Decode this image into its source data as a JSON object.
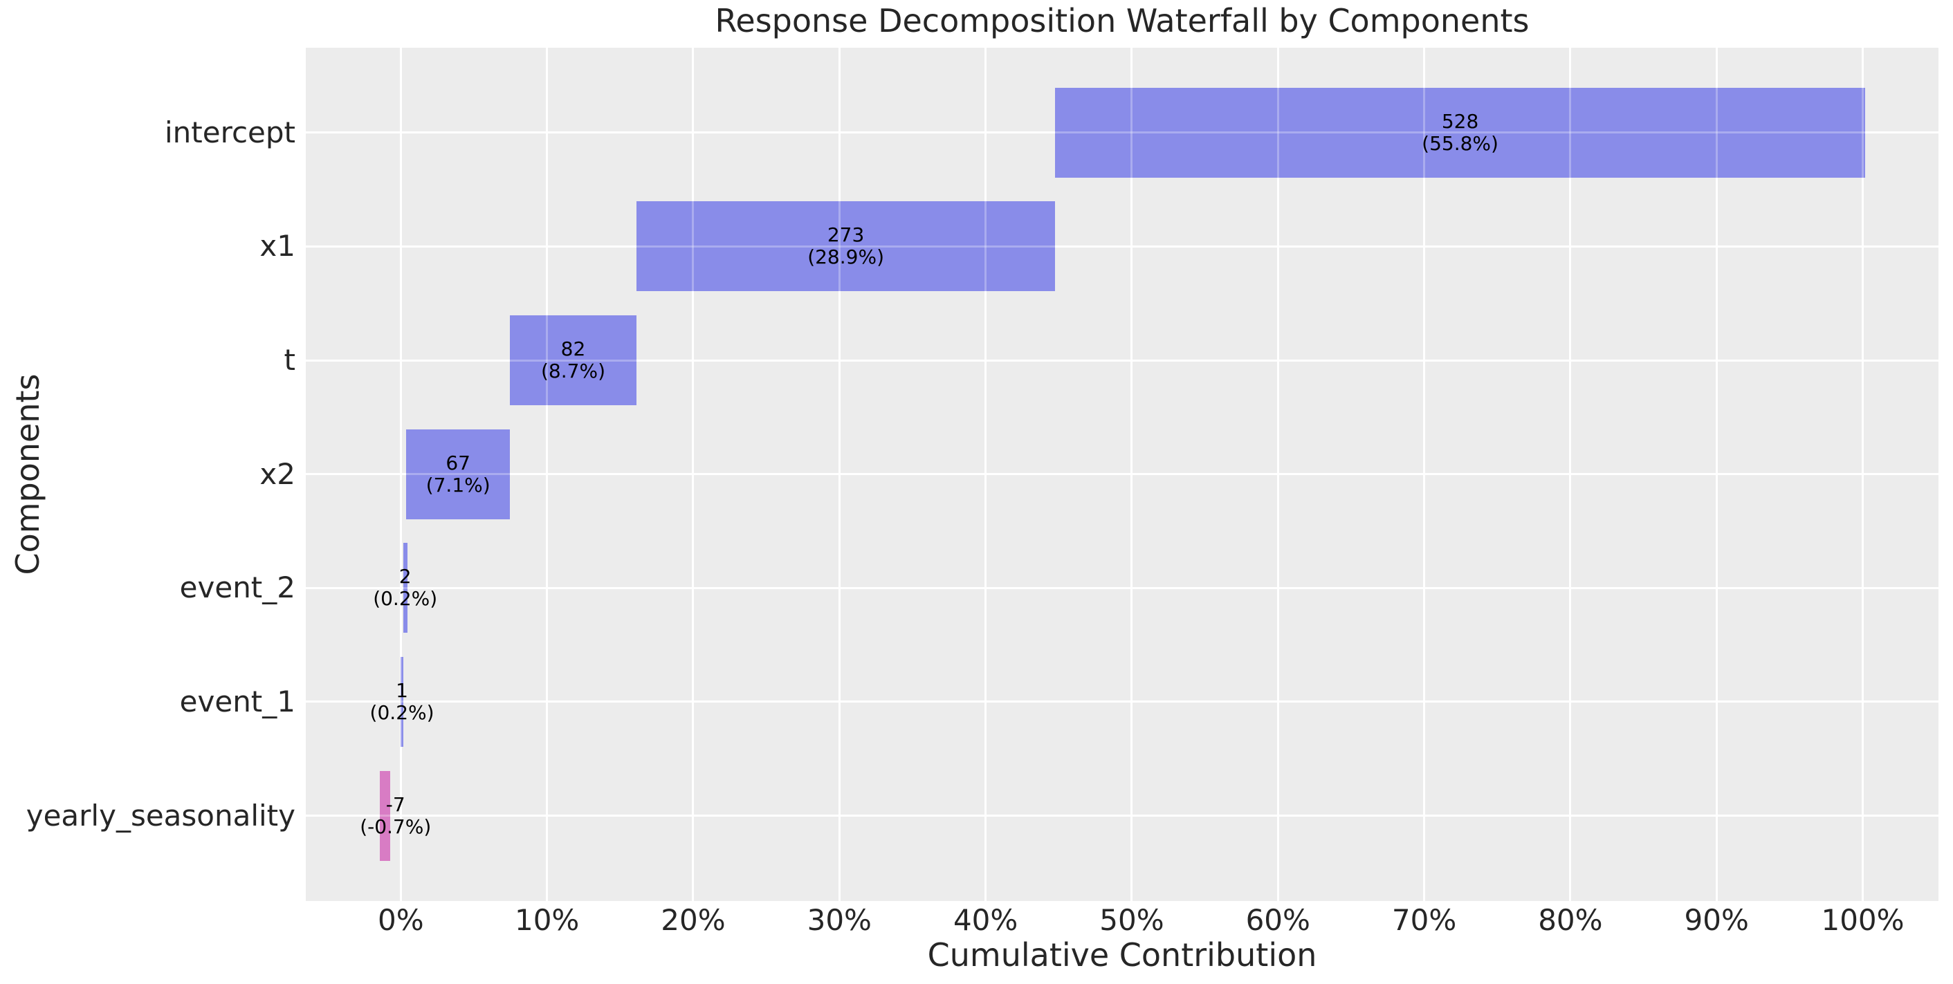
{
  "colors": {
    "positive_bar": "#898ce9",
    "negative_bar": "#d87cc4",
    "plot_background": "#ececec",
    "grid_line": "#ffffff",
    "axis_text": "#262626",
    "bar_label_text": "#000000",
    "figure_background": "#ffffff"
  },
  "chart_data": {
    "type": "bar",
    "subtype": "horizontal-waterfall",
    "title": "Response Decomposition Waterfall by Components",
    "xlabel": "Cumulative Contribution",
    "ylabel": "Components",
    "grid": true,
    "legend": false,
    "categories": [
      "intercept",
      "x1",
      "t",
      "x2",
      "event_2",
      "event_1",
      "yearly_seasonality"
    ],
    "values": [
      528,
      273,
      82,
      67,
      2,
      1,
      -7
    ],
    "percent_of_total": [
      55.8,
      28.9,
      8.7,
      7.1,
      0.2,
      0.2,
      -0.7
    ],
    "label_lines": [
      [
        "528",
        "(55.8%)"
      ],
      [
        "273",
        "(28.9%)"
      ],
      [
        "82",
        "(8.7%)"
      ],
      [
        "67",
        "(7.1%)"
      ],
      [
        "2",
        "(0.2%)"
      ],
      [
        "1",
        "(0.2%)"
      ],
      [
        "-7",
        "(-0.7%)"
      ]
    ],
    "bar_segments_pct": [
      [
        44.77,
        100.15
      ],
      [
        16.11,
        44.77
      ],
      [
        7.46,
        16.11
      ],
      [
        0.38,
        7.46
      ],
      [
        0.16,
        0.44
      ],
      [
        0.0,
        0.16
      ],
      [
        -1.42,
        -0.71
      ]
    ],
    "label_x_pct": [
      72.46,
      30.44,
      11.79,
      3.92,
      0.3,
      0.08,
      -0.36
    ],
    "bar_signs": [
      "positive",
      "positive",
      "positive",
      "positive",
      "positive",
      "positive",
      "negative"
    ],
    "xlim": [
      -6.5,
      105.18
    ],
    "x_ticks": [
      {
        "value": 0,
        "label": "0%"
      },
      {
        "value": 10,
        "label": "10%"
      },
      {
        "value": 20,
        "label": "20%"
      },
      {
        "value": 30,
        "label": "30%"
      },
      {
        "value": 40,
        "label": "40%"
      },
      {
        "value": 50,
        "label": "50%"
      },
      {
        "value": 60,
        "label": "60%"
      },
      {
        "value": 70,
        "label": "70%"
      },
      {
        "value": 80,
        "label": "80%"
      },
      {
        "value": 90,
        "label": "90%"
      },
      {
        "value": 100,
        "label": "100%"
      }
    ]
  }
}
